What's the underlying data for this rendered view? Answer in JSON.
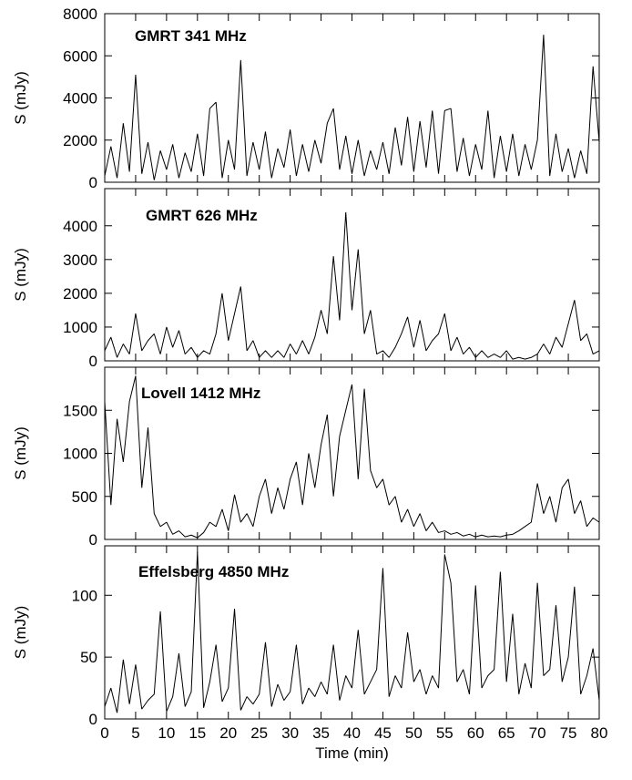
{
  "chart_data": [
    {
      "type": "line",
      "title": "GMRT 341 MHz",
      "y_label": "S (mJy)",
      "color": "#000000",
      "x": [
        0,
        1,
        2,
        3,
        4,
        5,
        6,
        7,
        8,
        9,
        10,
        11,
        12,
        13,
        14,
        15,
        16,
        17,
        18,
        19,
        20,
        21,
        22,
        23,
        24,
        25,
        26,
        27,
        28,
        29,
        30,
        31,
        32,
        33,
        34,
        35,
        36,
        37,
        38,
        39,
        40,
        41,
        42,
        43,
        44,
        45,
        46,
        47,
        48,
        49,
        50,
        51,
        52,
        53,
        54,
        55,
        56,
        57,
        58,
        59,
        60,
        61,
        62,
        63,
        64,
        65,
        66,
        67,
        68,
        69,
        70,
        71,
        72,
        73,
        74,
        75,
        76,
        77,
        78,
        79,
        80
      ],
      "values": [
        300,
        1700,
        200,
        2800,
        500,
        5100,
        400,
        1900,
        100,
        1500,
        600,
        1800,
        200,
        1400,
        500,
        2300,
        300,
        3500,
        3800,
        200,
        2000,
        600,
        5800,
        300,
        1900,
        600,
        2400,
        200,
        1600,
        700,
        2500,
        300,
        1800,
        500,
        2000,
        900,
        2800,
        3500,
        600,
        2200,
        400,
        2000,
        300,
        1500,
        600,
        1900,
        400,
        2600,
        800,
        3100,
        500,
        2900,
        700,
        3400,
        400,
        3400,
        3500,
        500,
        2100,
        300,
        1800,
        600,
        3400,
        200,
        2200,
        500,
        2300,
        300,
        1800,
        600,
        2000,
        7000,
        300,
        2300,
        500,
        1600,
        200,
        1500,
        400,
        5500,
        1900
      ],
      "xlim": [
        0,
        80
      ],
      "ylim": [
        0,
        8000
      ],
      "yticks": [
        0,
        2000,
        4000,
        6000,
        8000
      ]
    },
    {
      "type": "line",
      "title": "GMRT 626 MHz",
      "y_label": "S (mJy)",
      "color": "#000000",
      "x": [
        0,
        1,
        2,
        3,
        4,
        5,
        6,
        7,
        8,
        9,
        10,
        11,
        12,
        13,
        14,
        15,
        16,
        17,
        18,
        19,
        20,
        21,
        22,
        23,
        24,
        25,
        26,
        27,
        28,
        29,
        30,
        31,
        32,
        33,
        34,
        35,
        36,
        37,
        38,
        39,
        40,
        41,
        42,
        43,
        44,
        45,
        46,
        47,
        48,
        49,
        50,
        51,
        52,
        53,
        54,
        55,
        56,
        57,
        58,
        59,
        60,
        61,
        62,
        63,
        64,
        65,
        66,
        67,
        68,
        69,
        70,
        71,
        72,
        73,
        74,
        75,
        76,
        77,
        78,
        79,
        80
      ],
      "values": [
        300,
        700,
        100,
        500,
        200,
        1400,
        300,
        600,
        800,
        200,
        1000,
        400,
        900,
        200,
        400,
        100,
        300,
        200,
        800,
        2000,
        600,
        1400,
        2200,
        300,
        600,
        100,
        300,
        100,
        300,
        100,
        500,
        200,
        600,
        200,
        700,
        1500,
        800,
        3100,
        1200,
        4400,
        1500,
        3300,
        800,
        1500,
        200,
        300,
        100,
        400,
        800,
        1300,
        400,
        1200,
        300,
        600,
        800,
        1400,
        300,
        700,
        200,
        400,
        100,
        300,
        100,
        200,
        100,
        300,
        50,
        100,
        50,
        100,
        200,
        500,
        200,
        700,
        400,
        1100,
        1800,
        600,
        800,
        200,
        300
      ],
      "xlim": [
        0,
        80
      ],
      "ylim": [
        0,
        5100
      ],
      "yticks": [
        0,
        1000,
        2000,
        3000,
        4000
      ]
    },
    {
      "type": "line",
      "title": "Lovell 1412 MHz",
      "y_label": "S (mJy)",
      "color": "#000000",
      "x": [
        0,
        1,
        2,
        3,
        4,
        5,
        6,
        7,
        8,
        9,
        10,
        11,
        12,
        13,
        14,
        15,
        16,
        17,
        18,
        19,
        20,
        21,
        22,
        23,
        24,
        25,
        26,
        27,
        28,
        29,
        30,
        31,
        32,
        33,
        34,
        35,
        36,
        37,
        38,
        39,
        40,
        41,
        42,
        43,
        44,
        45,
        46,
        47,
        48,
        49,
        50,
        51,
        52,
        53,
        54,
        55,
        56,
        57,
        58,
        59,
        60,
        61,
        62,
        63,
        64,
        65,
        66,
        67,
        68,
        69,
        70,
        71,
        72,
        73,
        74,
        75,
        76,
        77,
        78,
        79,
        80
      ],
      "values": [
        1600,
        400,
        1400,
        900,
        1600,
        1900,
        600,
        1300,
        300,
        150,
        200,
        60,
        100,
        30,
        50,
        20,
        80,
        200,
        150,
        350,
        100,
        520,
        200,
        300,
        150,
        500,
        700,
        300,
        600,
        350,
        700,
        900,
        400,
        1000,
        600,
        1100,
        1450,
        500,
        1200,
        1500,
        1800,
        700,
        1750,
        800,
        600,
        700,
        400,
        500,
        200,
        350,
        150,
        300,
        100,
        200,
        80,
        100,
        60,
        80,
        40,
        60,
        30,
        50,
        30,
        40,
        30,
        50,
        60,
        100,
        150,
        200,
        650,
        300,
        500,
        200,
        600,
        700,
        300,
        450,
        150,
        250,
        200
      ],
      "xlim": [
        0,
        80
      ],
      "ylim": [
        0,
        2000
      ],
      "yticks": [
        0,
        500,
        1000,
        1500
      ]
    },
    {
      "type": "line",
      "title": "Effelsberg 4850 MHz",
      "y_label": "S (mJy)",
      "x_label": "Time (min)",
      "color": "#000000",
      "x": [
        0,
        1,
        2,
        3,
        4,
        5,
        6,
        7,
        8,
        9,
        10,
        11,
        12,
        13,
        14,
        15,
        16,
        17,
        18,
        19,
        20,
        21,
        22,
        23,
        24,
        25,
        26,
        27,
        28,
        29,
        30,
        31,
        32,
        33,
        34,
        35,
        36,
        37,
        38,
        39,
        40,
        41,
        42,
        43,
        44,
        45,
        46,
        47,
        48,
        49,
        50,
        51,
        52,
        53,
        54,
        55,
        56,
        57,
        58,
        59,
        60,
        61,
        62,
        63,
        64,
        65,
        66,
        67,
        68,
        69,
        70,
        71,
        72,
        73,
        74,
        75,
        76,
        77,
        78,
        79,
        80
      ],
      "values": [
        10,
        25,
        5,
        48,
        12,
        44,
        8,
        15,
        20,
        87,
        6,
        18,
        53,
        10,
        22,
        135,
        9,
        30,
        60,
        14,
        25,
        89,
        7,
        18,
        12,
        20,
        62,
        10,
        28,
        15,
        22,
        60,
        12,
        25,
        18,
        30,
        20,
        60,
        15,
        35,
        25,
        72,
        20,
        30,
        40,
        122,
        18,
        35,
        25,
        70,
        30,
        40,
        20,
        35,
        25,
        133,
        110,
        30,
        40,
        20,
        108,
        25,
        35,
        40,
        119,
        30,
        85,
        20,
        45,
        25,
        110,
        35,
        40,
        92,
        30,
        50,
        107,
        20,
        35,
        57,
        15
      ],
      "xlim": [
        0,
        80
      ],
      "ylim": [
        0,
        140
      ],
      "yticks": [
        0,
        50,
        100
      ],
      "xticks": [
        0,
        5,
        10,
        15,
        20,
        25,
        30,
        35,
        40,
        45,
        50,
        55,
        60,
        65,
        70,
        75,
        80
      ]
    }
  ]
}
